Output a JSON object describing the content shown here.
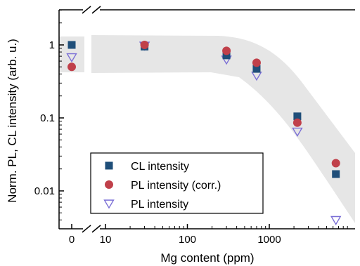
{
  "chart_data": {
    "type": "scatter",
    "title": "",
    "xlabel": "Mg content (ppm)",
    "ylabel": "Norm. PL, CL intensity (arb. u.)",
    "x_scale": "log (broken axis, 0 shown separately)",
    "y_scale": "log",
    "xlim": [
      7,
      7000
    ],
    "ylim": [
      0.003,
      3
    ],
    "x_ticks": [
      "0",
      "10",
      "100",
      "1000"
    ],
    "y_ticks": [
      "1",
      "0.1",
      "0.01"
    ],
    "grid": false,
    "legend_placement": "bottom-left",
    "series": [
      {
        "name": "CL intensity",
        "marker": "filled-square",
        "color": "#1f4e79",
        "points": [
          {
            "x": 0,
            "y": 1.0
          },
          {
            "x": 30,
            "y": 0.95
          },
          {
            "x": 300,
            "y": 0.72
          },
          {
            "x": 700,
            "y": 0.47
          },
          {
            "x": 2200,
            "y": 0.105
          },
          {
            "x": 6500,
            "y": 0.017
          }
        ]
      },
      {
        "name": "PL intensity (corr.)",
        "marker": "filled-circle",
        "color": "#c0404a",
        "points": [
          {
            "x": 0,
            "y": 0.5
          },
          {
            "x": 30,
            "y": 1.0
          },
          {
            "x": 300,
            "y": 0.83
          },
          {
            "x": 700,
            "y": 0.57
          },
          {
            "x": 2200,
            "y": 0.086
          },
          {
            "x": 6500,
            "y": 0.024
          }
        ]
      },
      {
        "name": "PL intensity",
        "marker": "open-triangle-down",
        "color": "#7b6fd6",
        "points": [
          {
            "x": 0,
            "y": 0.68
          },
          {
            "x": 30,
            "y": 0.98
          },
          {
            "x": 300,
            "y": 0.63
          },
          {
            "x": 700,
            "y": 0.38
          },
          {
            "x": 2200,
            "y": 0.065
          },
          {
            "x": 6500,
            "y": 0.004
          }
        ]
      }
    ],
    "band_color": "#e6e6e6"
  }
}
